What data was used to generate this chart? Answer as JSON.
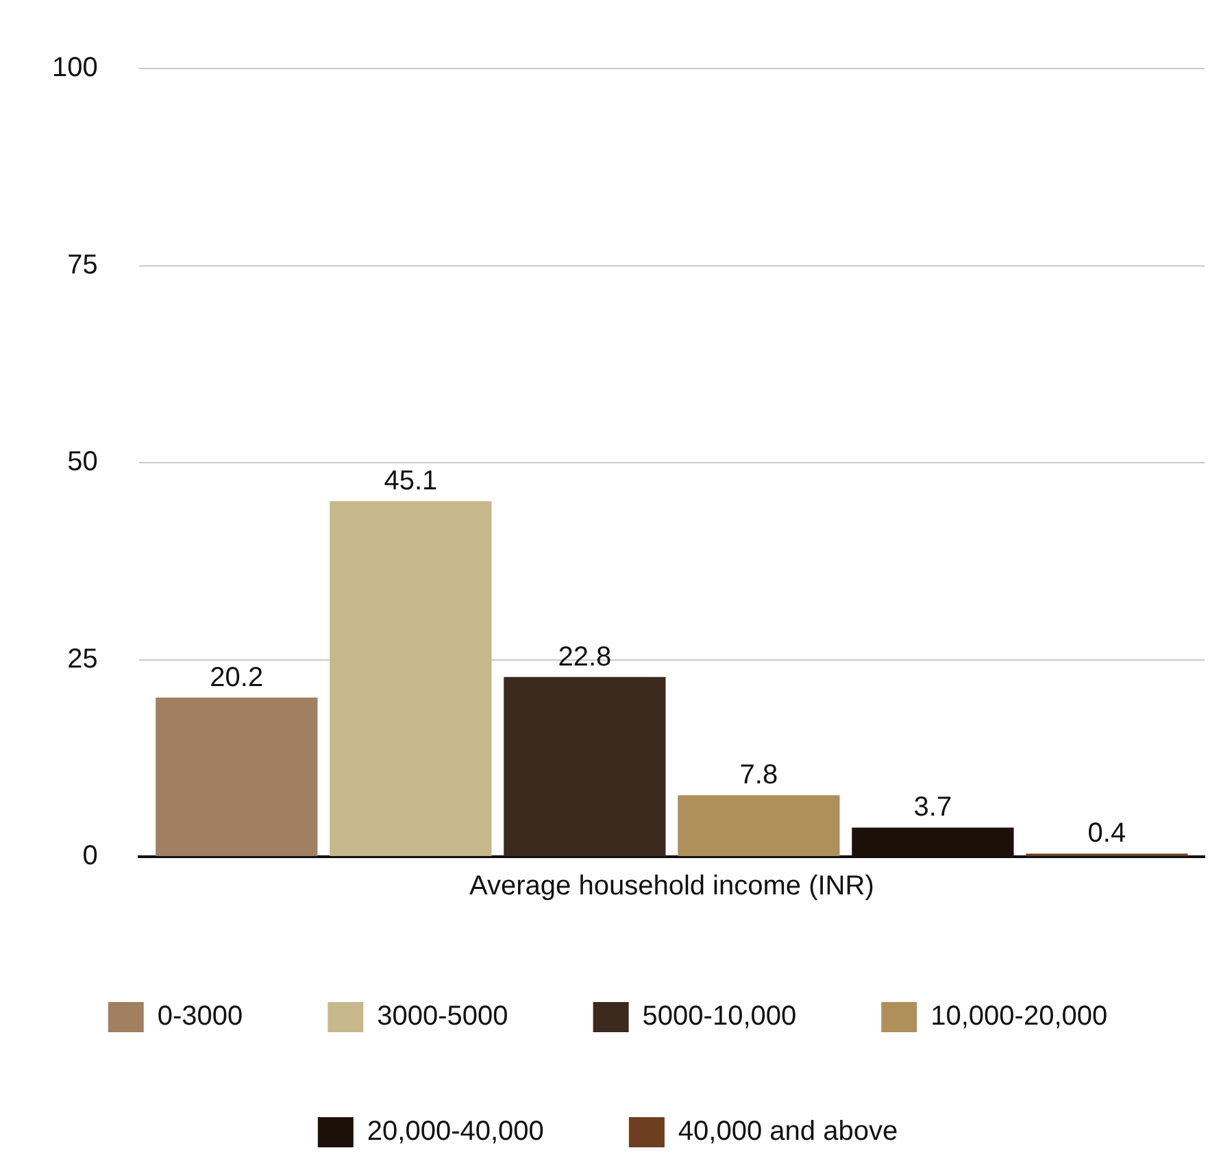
{
  "chart_data": {
    "type": "bar",
    "categories": [
      "Average household income (INR)"
    ],
    "series": [
      {
        "name": "0-3000",
        "color": "#a08060",
        "values": [
          20.2
        ]
      },
      {
        "name": "3000-5000",
        "color": "#c6b88c",
        "values": [
          45.1
        ]
      },
      {
        "name": "5000-10,000",
        "color": "#3c2a1e",
        "values": [
          22.8
        ]
      },
      {
        "name": "10,000-20,000",
        "color": "#b0905a",
        "values": [
          7.8
        ]
      },
      {
        "name": "20,000-40,000",
        "color": "#1c1008",
        "values": [
          3.7
        ]
      },
      {
        "name": "40,000 and above",
        "color": "#6e3e20",
        "values": [
          0.4
        ]
      }
    ],
    "ylim": [
      0,
      100
    ],
    "yticks": [
      0,
      25,
      50,
      75,
      100
    ],
    "grid": "y",
    "legend": "bottom",
    "data_labels": true
  }
}
